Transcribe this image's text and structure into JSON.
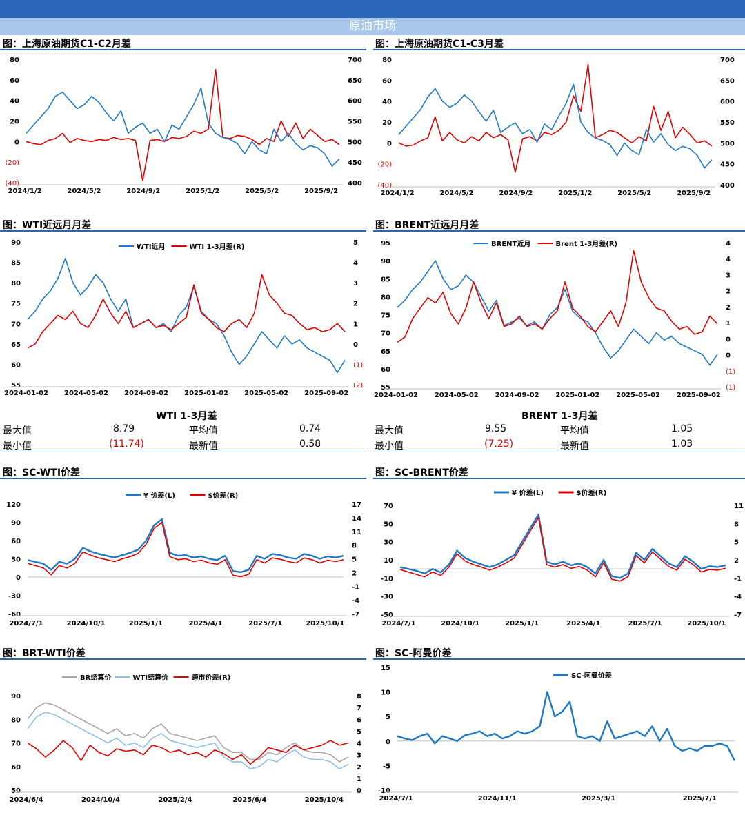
{
  "header": {
    "title": "原油市场"
  },
  "sections": [
    {
      "title": "图：上海原油期货C1-C2月差"
    },
    {
      "title": "图：上海原油期货C1-C3月差"
    },
    {
      "title": "图：WTI近远月月差"
    },
    {
      "title": "图：BRENT近远月月差"
    },
    {
      "title": "图：SC-WTI价差"
    },
    {
      "title": "图：SC-BRENT价差"
    },
    {
      "title": "图：BRT-WTI价差"
    },
    {
      "title": "图：SC-阿曼价差"
    }
  ],
  "stats": [
    {
      "title": "WTI 1-3月差",
      "max_label": "最大值",
      "max": "8.79",
      "avg_label": "平均值",
      "avg": "0.74",
      "min_label": "最小值",
      "min": "(11.74)",
      "latest_label": "最新值",
      "latest": "0.58"
    },
    {
      "title": "BRENT 1-3月差",
      "max_label": "最大值",
      "max": "9.55",
      "avg_label": "平均值",
      "avg": "1.05",
      "min_label": "最小值",
      "min": "(7.25)",
      "latest_label": "最新值",
      "latest": "1.03"
    }
  ],
  "chart_data": [
    {
      "type": "line",
      "title": "",
      "x_ticks": [
        "2024/1/2",
        "2024/5/2",
        "2024/9/2",
        "2025/1/2",
        "2025/5/2",
        "2025/9/2"
      ],
      "y_ticks": [
        "80",
        "60",
        "40",
        "20",
        "0",
        "(20)",
        "(40)"
      ],
      "ylim": [
        -40,
        80
      ],
      "y2_ticks": [
        "700",
        "650",
        "600",
        "550",
        "500",
        "450",
        "400"
      ],
      "y2lim": [
        400,
        700
      ],
      "series": [
        {
          "name": "",
          "axis": "left",
          "color": "#e00000",
          "values": [
            0,
            -2,
            -3,
            1,
            3,
            8,
            -1,
            3,
            1,
            0,
            2,
            1,
            4,
            2,
            3,
            1,
            -38,
            1,
            2,
            0,
            4,
            3,
            5,
            10,
            8,
            12,
            70,
            4,
            3,
            6,
            5,
            2,
            -3,
            3,
            0,
            20,
            5,
            18,
            3,
            12,
            6,
            0,
            2,
            -3
          ]
        },
        {
          "name": "",
          "axis": "right",
          "color": "#1f78c8",
          "values": [
            520,
            540,
            560,
            580,
            610,
            620,
            600,
            580,
            590,
            610,
            595,
            570,
            550,
            575,
            520,
            535,
            545,
            520,
            530,
            500,
            540,
            530,
            560,
            590,
            630,
            545,
            520,
            510,
            505,
            495,
            470,
            500,
            480,
            470,
            530,
            500,
            520,
            495,
            480,
            490,
            485,
            470,
            440,
            458
          ]
        }
      ]
    },
    {
      "type": "line",
      "title": "",
      "x_ticks": [
        "2024/1/2",
        "2024/5/2",
        "2024/9/2",
        "2025/1/2",
        "2025/5/2",
        "2025/9/2"
      ],
      "y_ticks": [
        "80",
        "60",
        "40",
        "20",
        "0",
        "(20)",
        "(40)"
      ],
      "ylim": [
        -40,
        80
      ],
      "y2_ticks": [
        "700",
        "650",
        "600",
        "550",
        "500",
        "450",
        "400"
      ],
      "y2lim": [
        400,
        700
      ],
      "series": [
        {
          "name": "",
          "axis": "left",
          "color": "#e00000",
          "values": [
            0,
            -3,
            -2,
            2,
            5,
            25,
            2,
            10,
            3,
            0,
            6,
            2,
            10,
            5,
            8,
            3,
            -28,
            4,
            6,
            2,
            10,
            8,
            12,
            20,
            45,
            30,
            75,
            5,
            8,
            12,
            10,
            5,
            0,
            6,
            2,
            35,
            12,
            30,
            5,
            15,
            8,
            0,
            2,
            -3
          ]
        },
        {
          "name": "",
          "axis": "right",
          "color": "#1f78c8",
          "values": [
            520,
            540,
            560,
            580,
            610,
            630,
            600,
            585,
            595,
            615,
            600,
            575,
            552,
            578,
            525,
            538,
            548,
            522,
            532,
            502,
            545,
            532,
            565,
            595,
            640,
            550,
            525,
            512,
            506,
            496,
            470,
            500,
            482,
            472,
            532,
            502,
            522,
            496,
            482,
            492,
            486,
            470,
            440,
            460
          ]
        }
      ]
    },
    {
      "type": "line",
      "title": "",
      "x_ticks": [
        "2024-01-02",
        "2024-05-02",
        "2024-09-02",
        "2025-01-02",
        "2025-05-02",
        "2025-09-02"
      ],
      "y_ticks": [
        "90",
        "85",
        "80",
        "75",
        "70",
        "65",
        "60",
        "55"
      ],
      "ylim": [
        55,
        90
      ],
      "y2_ticks": [
        "5",
        "4",
        "3",
        "2",
        "1",
        "0",
        "(1)",
        "(2)"
      ],
      "y2lim": [
        -2,
        5
      ],
      "series": [
        {
          "name": "WTI近月",
          "axis": "left",
          "color": "#1f78c8",
          "values": [
            71,
            73,
            76,
            78,
            81,
            86,
            80,
            77,
            79,
            82,
            80,
            76,
            73,
            76,
            69,
            70,
            71,
            69,
            70,
            68,
            72,
            74,
            79,
            73,
            71,
            70,
            67,
            63,
            60,
            62,
            65,
            68,
            66,
            64,
            67,
            65,
            66,
            64,
            63,
            62,
            61,
            58,
            61
          ]
        },
        {
          "name": "WTI 1-3月差(R)",
          "axis": "right",
          "color": "#e00000",
          "values": [
            -0.2,
            0.0,
            0.6,
            1.0,
            1.4,
            1.2,
            1.6,
            1.0,
            0.8,
            1.4,
            2.2,
            1.5,
            1.0,
            1.6,
            0.8,
            1.0,
            1.2,
            0.8,
            0.9,
            0.7,
            1.0,
            1.3,
            2.9,
            1.5,
            1.2,
            0.8,
            0.6,
            1.0,
            1.2,
            0.8,
            1.5,
            3.4,
            2.4,
            2.0,
            1.5,
            1.4,
            1.0,
            0.7,
            0.8,
            0.6,
            0.7,
            1.0,
            0.6
          ]
        }
      ]
    },
    {
      "type": "line",
      "title": "",
      "x_ticks": [
        "2024-01-02",
        "2024-05-02",
        "2024-09-02",
        "2025-01-02",
        "2025-05-02",
        "2025-09-02"
      ],
      "y_ticks": [
        "95",
        "90",
        "85",
        "80",
        "75",
        "70",
        "65",
        "60",
        "55"
      ],
      "ylim": [
        55,
        95
      ],
      "y2_ticks": [
        "4",
        "4",
        "3",
        "2",
        "2",
        "1",
        "0",
        "0",
        "(1)",
        "(1)"
      ],
      "y2lim": [
        -1.4,
        4.1
      ],
      "series": [
        {
          "name": "BRENT近月",
          "axis": "left",
          "color": "#1f78c8",
          "values": [
            77,
            79,
            82,
            84,
            87,
            90,
            85,
            82,
            83,
            86,
            84,
            80,
            76,
            79,
            72,
            73,
            74,
            72,
            73,
            71,
            75,
            77,
            82,
            76,
            74,
            73,
            70,
            66,
            63,
            65,
            68,
            71,
            69,
            67,
            70,
            68,
            69,
            67,
            66,
            65,
            64,
            61,
            64
          ]
        },
        {
          "name": "Brent 1-3月差(R)",
          "axis": "right",
          "color": "#e00000",
          "values": [
            0.3,
            0.5,
            1.2,
            1.6,
            2.0,
            1.8,
            2.2,
            1.4,
            1.0,
            1.6,
            2.6,
            1.8,
            1.2,
            1.8,
            0.9,
            1.0,
            1.3,
            0.9,
            1.0,
            0.8,
            1.2,
            1.5,
            2.6,
            1.6,
            1.3,
            0.9,
            0.7,
            1.1,
            1.5,
            0.9,
            1.8,
            3.8,
            2.6,
            2.0,
            1.6,
            1.5,
            1.1,
            0.8,
            0.9,
            0.6,
            0.7,
            1.3,
            1.0
          ]
        }
      ]
    },
    {
      "type": "line",
      "title": "",
      "x_ticks": [
        "2024/7/1",
        "2024/10/1",
        "2025/1/1",
        "2025/4/1",
        "2025/7/1",
        "2025/10/1"
      ],
      "y_ticks": [
        "120",
        "90",
        "60",
        "30",
        "0",
        "-30",
        "-60"
      ],
      "ylim": [
        -60,
        120
      ],
      "y2_ticks": [
        "17",
        "14",
        "11",
        "8",
        "5",
        "2",
        "-1",
        "-4",
        "-7"
      ],
      "y2lim": [
        -7,
        17
      ],
      "series": [
        {
          "name": "¥ 价差(L)",
          "axis": "left",
          "color": "#1f78c8",
          "values": [
            28,
            25,
            22,
            12,
            25,
            22,
            30,
            48,
            42,
            38,
            35,
            32,
            36,
            40,
            45,
            60,
            85,
            95,
            40,
            35,
            36,
            32,
            34,
            30,
            28,
            35,
            10,
            8,
            12,
            35,
            30,
            38,
            36,
            32,
            30,
            38,
            35,
            30,
            34,
            32,
            35
          ]
        },
        {
          "name": "$价差(R)",
          "axis": "right",
          "color": "#e00000",
          "values": [
            4,
            3.5,
            3,
            1.5,
            3.5,
            3,
            4,
            6.5,
            5.8,
            5.2,
            4.8,
            4.4,
            5,
            5.5,
            6.2,
            8.2,
            11.6,
            13,
            5.5,
            4.8,
            5,
            4.4,
            4.7,
            4.1,
            3.8,
            4.8,
            1.4,
            1.1,
            1.6,
            4.8,
            4.1,
            5.2,
            4.9,
            4.4,
            4.1,
            5.2,
            4.8,
            4.1,
            4.7,
            4.4,
            4.8
          ]
        }
      ]
    },
    {
      "type": "line",
      "title": "",
      "x_ticks": [
        "2024/7/1",
        "2024/10/1",
        "2025/1/1",
        "2025/4/1",
        "2025/7/1",
        "2025/10/1"
      ],
      "y_ticks": [
        "70",
        "50",
        "30",
        "10",
        "-10",
        "-30",
        "-50"
      ],
      "ylim": [
        -50,
        70
      ],
      "y2_ticks": [
        "11",
        "8",
        "5",
        "2",
        "-1",
        "-4",
        "-7"
      ],
      "y2lim": [
        -7,
        11
      ],
      "series": [
        {
          "name": "¥ 价差(L)",
          "axis": "left",
          "color": "#1f78c8",
          "values": [
            2,
            0,
            -2,
            -5,
            0,
            -4,
            5,
            20,
            12,
            8,
            5,
            2,
            5,
            10,
            15,
            30,
            45,
            60,
            8,
            5,
            8,
            4,
            6,
            2,
            -5,
            10,
            -8,
            -10,
            -5,
            18,
            10,
            22,
            14,
            6,
            2,
            14,
            8,
            0,
            3,
            2,
            4
          ]
        },
        {
          "name": "$价差(R)",
          "axis": "right",
          "color": "#e00000",
          "values": [
            0.4,
            0,
            -0.4,
            -0.8,
            0,
            -0.6,
            0.8,
            3,
            1.8,
            1.2,
            0.8,
            0.3,
            0.8,
            1.5,
            2.3,
            4.5,
            6.8,
            9,
            1.2,
            0.8,
            1.2,
            0.6,
            0.9,
            0.3,
            -0.8,
            1.5,
            -1.2,
            -1.5,
            -0.8,
            2.7,
            1.5,
            3.3,
            2.1,
            0.9,
            0.3,
            2.1,
            1.2,
            0,
            0.4,
            0.3,
            0.6
          ]
        }
      ]
    },
    {
      "type": "line",
      "title": "",
      "x_ticks": [
        "2024/6/4",
        "2024/10/4",
        "2025/2/4",
        "2025/6/4",
        "2025/10/4"
      ],
      "y_ticks": [
        "90",
        "80",
        "70",
        "60",
        "50"
      ],
      "ylim": [
        50,
        90
      ],
      "y2_ticks": [
        "8",
        "7",
        "6",
        "5",
        "4",
        "3",
        "2",
        "1",
        "0"
      ],
      "y2lim": [
        0,
        8
      ],
      "series": [
        {
          "name": "BR结算价",
          "axis": "left",
          "color": "#a6a6a6",
          "values": [
            80,
            85,
            87,
            86,
            84,
            82,
            80,
            78,
            76,
            74,
            76,
            73,
            74,
            72,
            76,
            78,
            74,
            73,
            72,
            71,
            72,
            73,
            68,
            66,
            66,
            63,
            63,
            66,
            65,
            68,
            70,
            67,
            66,
            66,
            65,
            62,
            64
          ]
        },
        {
          "name": "WTI结算价",
          "axis": "left",
          "color": "#8ec1ea",
          "values": [
            76,
            81,
            83,
            82,
            80,
            78,
            76,
            74,
            72,
            70,
            72,
            69,
            70,
            68,
            72,
            74,
            71,
            70,
            69,
            68,
            69,
            70,
            64,
            62,
            62,
            59,
            60,
            63,
            62,
            65,
            67,
            64,
            63,
            63,
            62,
            59,
            61
          ]
        },
        {
          "name": "跨市价差(R)",
          "axis": "right",
          "color": "#e00000",
          "values": [
            4,
            3.5,
            2.8,
            3.4,
            4.2,
            3.6,
            2.5,
            3.8,
            3.2,
            2.9,
            3.5,
            3.3,
            3.4,
            3,
            3.8,
            3.6,
            3.2,
            3.4,
            3,
            3.2,
            2.8,
            3.4,
            3.1,
            2.6,
            3,
            2.2,
            2.8,
            3.6,
            3.4,
            3.2,
            3.8,
            3.4,
            3.6,
            3.8,
            4.2,
            3.8,
            4
          ]
        }
      ]
    },
    {
      "type": "line",
      "title": "",
      "x_ticks": [
        "2024/7/1",
        "2024/11/1",
        "2025/3/1",
        "2025/7/1"
      ],
      "y_ticks": [
        "15",
        "10",
        "5",
        "0",
        "-5",
        "-10"
      ],
      "ylim": [
        -10,
        15
      ],
      "series": [
        {
          "name": "SC-阿曼价差",
          "axis": "left",
          "color": "#1f78c8",
          "values": [
            1,
            0.5,
            0.2,
            1,
            1.5,
            -0.5,
            1,
            0.5,
            0,
            1.2,
            1.5,
            2,
            1,
            1.5,
            0.5,
            1,
            2,
            1.5,
            2,
            3,
            10,
            5,
            6,
            8,
            1,
            0.5,
            1,
            0,
            4,
            0.5,
            1,
            1.5,
            2,
            1,
            3,
            0,
            2.5,
            -1,
            -2,
            -1.5,
            -2,
            -1,
            -1,
            -0.5,
            -1,
            -4
          ]
        }
      ]
    }
  ]
}
